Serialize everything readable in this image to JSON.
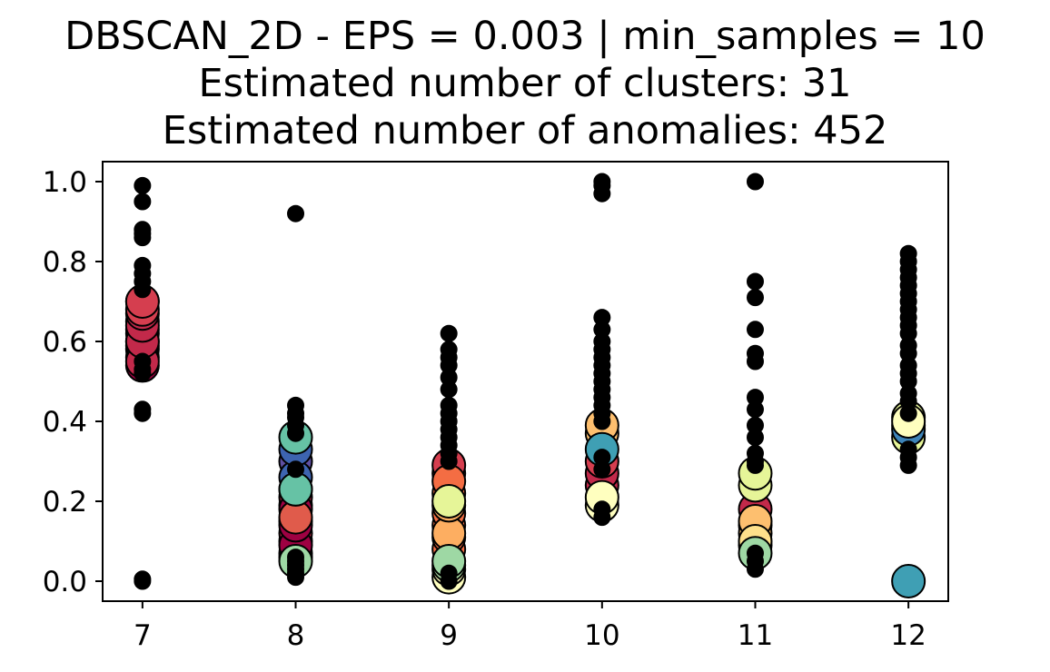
{
  "chart_data": {
    "type": "scatter",
    "title": "DBSCAN_2D - EPS = 0.003 | min_samples = 10",
    "subtitle_lines": [
      "Estimated number of clusters: 31",
      "Estimated number of anomalies: 452"
    ],
    "xlabel": "",
    "ylabel": "",
    "xlim": [
      6.74,
      12.26
    ],
    "ylim": [
      -0.05,
      1.05
    ],
    "x_ticks": [
      7,
      8,
      9,
      10,
      11,
      12
    ],
    "y_ticks": [
      0.0,
      0.2,
      0.4,
      0.6,
      0.8,
      1.0
    ],
    "y_tick_labels": [
      "0.0",
      "0.2",
      "0.4",
      "0.6",
      "0.8",
      "1.0"
    ],
    "grid": false,
    "legend": "none",
    "anomaly_color": "#000000",
    "clusters": [
      {
        "x": 7,
        "color": "#9e0142",
        "y": [
          0.54,
          0.56,
          0.58,
          0.59,
          0.6,
          0.62,
          0.63,
          0.65
        ]
      },
      {
        "x": 7,
        "color": "#c2294a",
        "y": [
          0.55,
          0.6,
          0.64,
          0.67,
          0.7
        ]
      },
      {
        "x": 7,
        "color": "#d53e4f",
        "y": [
          0.68,
          0.7
        ]
      },
      {
        "x": 8,
        "color": "#c2294a",
        "y": [
          0.07,
          0.1,
          0.12,
          0.15,
          0.19,
          0.21
        ]
      },
      {
        "x": 8,
        "color": "#9e0142",
        "y": [
          0.06,
          0.09,
          0.14,
          0.18
        ]
      },
      {
        "x": 8,
        "color": "#e05b4b",
        "y": [
          0.16,
          0.23
        ]
      },
      {
        "x": 8,
        "color": "#5e4fa2",
        "y": [
          0.3
        ]
      },
      {
        "x": 8,
        "color": "#3d64b0",
        "y": [
          0.26,
          0.33
        ]
      },
      {
        "x": 8,
        "color": "#66c2a5",
        "y": [
          0.23,
          0.36
        ]
      },
      {
        "x": 8,
        "color": "#9ed8a4",
        "y": [
          0.05
        ]
      },
      {
        "x": 9,
        "color": "#d53e4f",
        "y": [
          0.27,
          0.29
        ]
      },
      {
        "x": 9,
        "color": "#f46d43",
        "y": [
          0.08,
          0.11,
          0.14,
          0.17,
          0.22,
          0.25
        ]
      },
      {
        "x": 9,
        "color": "#fdae61",
        "y": [
          0.12,
          0.19
        ]
      },
      {
        "x": 9,
        "color": "#e6f598",
        "y": [
          0.2
        ]
      },
      {
        "x": 9,
        "color": "#ffffbf",
        "y": [
          0.01,
          0.03
        ]
      },
      {
        "x": 9,
        "color": "#abdda4",
        "y": [
          0.04
        ]
      },
      {
        "x": 9,
        "color": "#9ed8a4",
        "y": [
          0.05
        ]
      },
      {
        "x": 10,
        "color": "#c2294a",
        "y": [
          0.24,
          0.27
        ]
      },
      {
        "x": 10,
        "color": "#d53e4f",
        "y": [
          0.3
        ]
      },
      {
        "x": 10,
        "color": "#fdbf6f",
        "y": [
          0.37,
          0.39
        ]
      },
      {
        "x": 10,
        "color": "#3f9fb4",
        "y": [
          0.33
        ]
      },
      {
        "x": 10,
        "color": "#ffffbf",
        "y": [
          0.19,
          0.21
        ]
      },
      {
        "x": 11,
        "color": "#c2294a",
        "y": [
          0.14,
          0.18
        ]
      },
      {
        "x": 11,
        "color": "#fdbf6f",
        "y": [
          0.09,
          0.12,
          0.15
        ]
      },
      {
        "x": 11,
        "color": "#fee08b",
        "y": [
          0.1
        ]
      },
      {
        "x": 11,
        "color": "#e6f598",
        "y": [
          0.24,
          0.27
        ]
      },
      {
        "x": 11,
        "color": "#9ed8a4",
        "y": [
          0.07
        ]
      },
      {
        "x": 12,
        "color": "#e6f598",
        "y": [
          0.36,
          0.39,
          0.41
        ]
      },
      {
        "x": 12,
        "color": "#3d84b8",
        "y": [
          0.38
        ]
      },
      {
        "x": 12,
        "color": "#3f9fb4",
        "y": [
          0.0
        ]
      },
      {
        "x": 12,
        "color": "#ffffbf",
        "y": [
          0.4
        ]
      }
    ],
    "anomalies": [
      {
        "x": 7,
        "y": [
          0.0,
          0.005,
          0.42,
          0.43,
          0.52,
          0.53,
          0.55,
          0.73,
          0.75,
          0.77,
          0.79,
          0.86,
          0.87,
          0.88,
          0.95,
          0.99
        ]
      },
      {
        "x": 8,
        "y": [
          0.01,
          0.02,
          0.03,
          0.04,
          0.05,
          0.06,
          0.28,
          0.37,
          0.39,
          0.41,
          0.42,
          0.44,
          0.92
        ]
      },
      {
        "x": 9,
        "y": [
          0.0,
          0.02,
          0.3,
          0.32,
          0.34,
          0.36,
          0.38,
          0.4,
          0.42,
          0.44,
          0.48,
          0.51,
          0.54,
          0.56,
          0.58,
          0.62
        ]
      },
      {
        "x": 10,
        "y": [
          0.16,
          0.18,
          0.28,
          0.31,
          0.4,
          0.42,
          0.44,
          0.46,
          0.48,
          0.5,
          0.52,
          0.54,
          0.56,
          0.58,
          0.6,
          0.63,
          0.66,
          0.97,
          0.99,
          1.0
        ]
      },
      {
        "x": 11,
        "y": [
          0.03,
          0.05,
          0.07,
          0.29,
          0.3,
          0.32,
          0.36,
          0.39,
          0.43,
          0.46,
          0.55,
          0.57,
          0.63,
          0.71,
          0.75,
          1.0
        ]
      },
      {
        "x": 12,
        "y": [
          0.29,
          0.31,
          0.33,
          0.42,
          0.45,
          0.47,
          0.5,
          0.52,
          0.54,
          0.57,
          0.59,
          0.62,
          0.64,
          0.66,
          0.68,
          0.7,
          0.72,
          0.74,
          0.76,
          0.78,
          0.8,
          0.82
        ]
      }
    ]
  }
}
